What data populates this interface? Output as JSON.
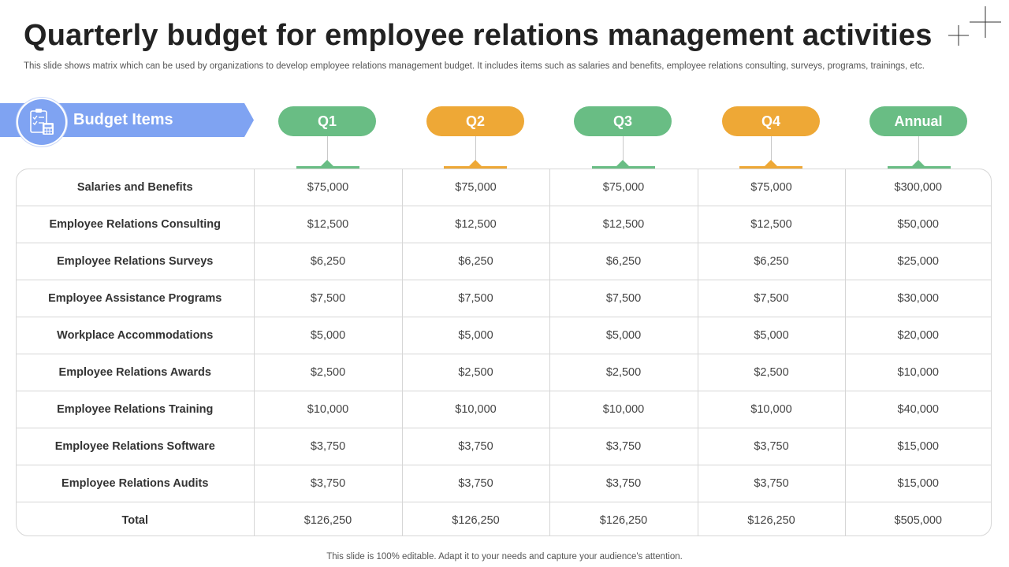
{
  "title": "Quarterly budget for employee relations management activities",
  "subtitle": "This slide shows matrix which can be used by organizations to develop employee relations management budget. It includes items such as salaries and benefits, employee relations consulting, surveys, programs, trainings, etc.",
  "header": {
    "budget_items_label": "Budget Items",
    "budget_icon": "clipboard-calculator-icon",
    "columns": [
      {
        "label": "Q1",
        "color": "#69bd84"
      },
      {
        "label": "Q2",
        "color": "#eea836"
      },
      {
        "label": "Q3",
        "color": "#69bd84"
      },
      {
        "label": "Q4",
        "color": "#eea836"
      },
      {
        "label": "Annual",
        "color": "#69bd84"
      }
    ]
  },
  "rows": [
    {
      "item": "Salaries and Benefits",
      "values": [
        "$75,000",
        "$75,000",
        "$75,000",
        "$75,000",
        "$300,000"
      ]
    },
    {
      "item": "Employee Relations Consulting",
      "values": [
        "$12,500",
        "$12,500",
        "$12,500",
        "$12,500",
        "$50,000"
      ]
    },
    {
      "item": "Employee Relations Surveys",
      "values": [
        "$6,250",
        "$6,250",
        "$6,250",
        "$6,250",
        "$25,000"
      ]
    },
    {
      "item": "Employee Assistance Programs",
      "values": [
        "$7,500",
        "$7,500",
        "$7,500",
        "$7,500",
        "$30,000"
      ]
    },
    {
      "item": "Workplace Accommodations",
      "values": [
        "$5,000",
        "$5,000",
        "$5,000",
        "$5,000",
        "$20,000"
      ]
    },
    {
      "item": "Employee Relations Awards",
      "values": [
        "$2,500",
        "$2,500",
        "$2,500",
        "$2,500",
        "$10,000"
      ]
    },
    {
      "item": "Employee Relations Training",
      "values": [
        "$10,000",
        "$10,000",
        "$10,000",
        "$10,000",
        "$40,000"
      ]
    },
    {
      "item": "Employee Relations Software",
      "values": [
        "$3,750",
        "$3,750",
        "$3,750",
        "$3,750",
        "$15,000"
      ]
    },
    {
      "item": "Employee Relations Audits",
      "values": [
        "$3,750",
        "$3,750",
        "$3,750",
        "$3,750",
        "$15,000"
      ]
    }
  ],
  "total": {
    "item": "Total",
    "values": [
      "$126,250",
      "$126,250",
      "$126,250",
      "$126,250",
      "$505,000"
    ]
  },
  "footer": "This slide is 100% editable. Adapt it to your needs and capture your audience's attention."
}
